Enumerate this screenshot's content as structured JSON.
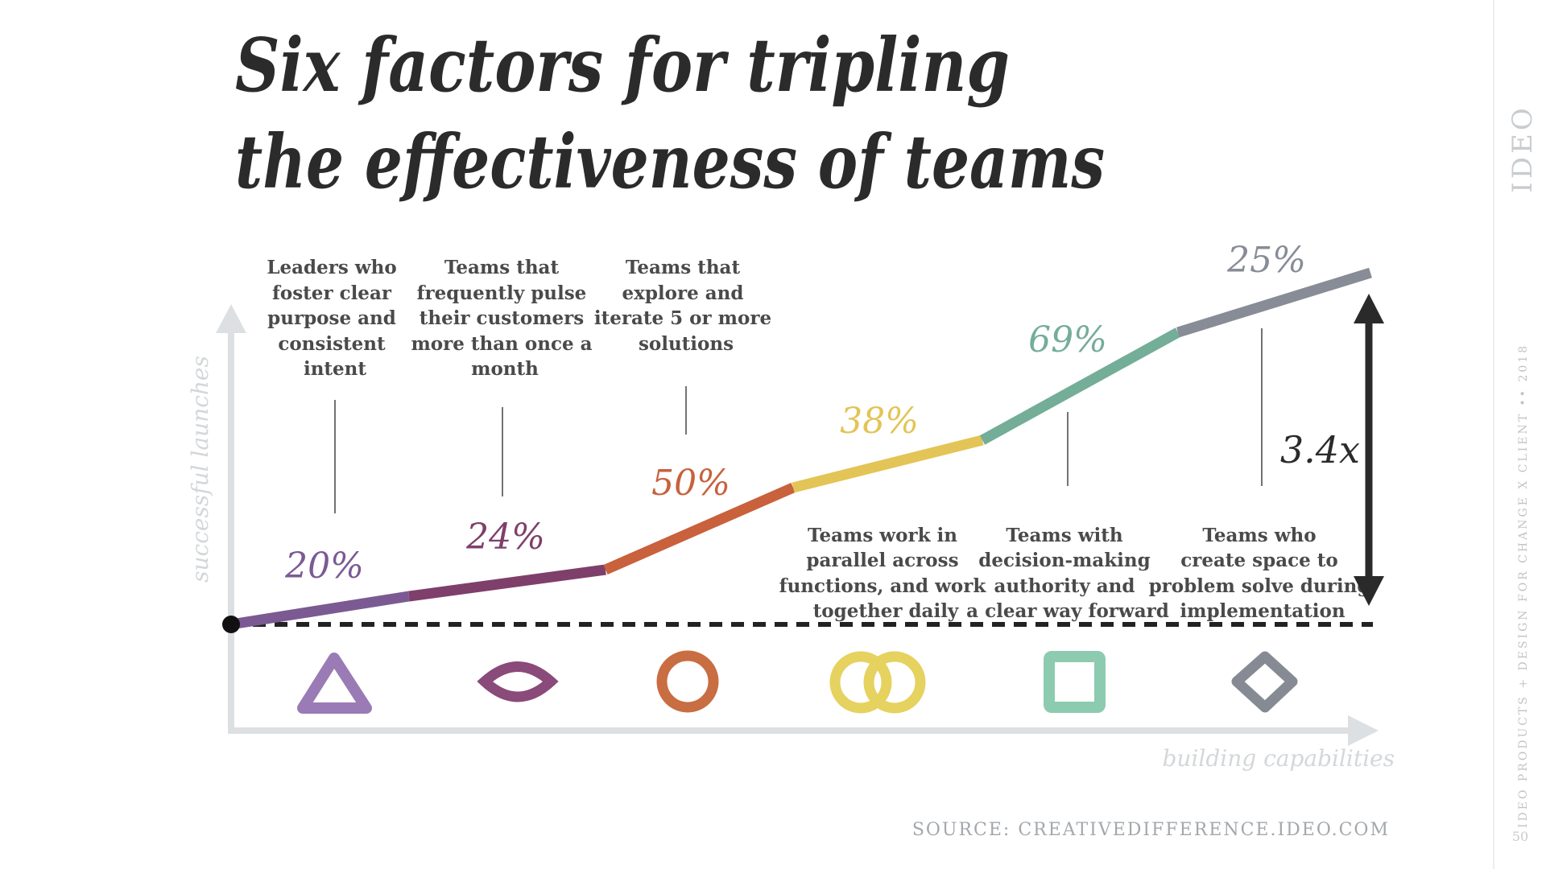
{
  "title": {
    "line1": "Six factors for tripling",
    "line2": "the effectiveness of teams"
  },
  "y_axis_label": "successful launches",
  "x_axis_label": "building capabilities",
  "factors": [
    {
      "percent": "20%",
      "color": "#7b5a93",
      "shape": "triangle-icon",
      "shape_color": "#9a7bb5",
      "description": [
        "Leaders who",
        "foster  clear",
        "purpose and",
        "consistent",
        "intent"
      ]
    },
    {
      "percent": "24%",
      "color": "#7f3f6b",
      "shape": "eye-icon",
      "shape_color": "#8a4a7a",
      "description": [
        "Teams that",
        "frequently pulse",
        "their customers",
        "more than once a",
        "month"
      ]
    },
    {
      "percent": "50%",
      "color": "#c8613c",
      "shape": "circle-icon",
      "shape_color": "#c96d42",
      "description": [
        "Teams that",
        "explore and",
        "iterate 5 or more",
        "solutions"
      ]
    },
    {
      "percent": "38%",
      "color": "#e3c456",
      "shape": "interlocking-rings-icon",
      "shape_color": "#e5d25f",
      "description": [
        "Teams work in",
        "parallel across",
        "functions, and work",
        "together daily"
      ]
    },
    {
      "percent": "69%",
      "color": "#74ad98",
      "shape": "square-icon",
      "shape_color": "#8ccbb0",
      "description": [
        "Teams with",
        "decision-making",
        "authority and",
        "a clear way forward"
      ]
    },
    {
      "percent": "25%",
      "color": "#878c96",
      "shape": "diamond-icon",
      "shape_color": "#858a93",
      "description": [
        "Teams who",
        "create space to",
        "problem solve during",
        "implementation"
      ]
    }
  ],
  "multiplier": "3.4x",
  "source": "SOURCE: CREATIVEDIFFERENCE.IDEO.COM",
  "brand": "IDEO",
  "footer": "IDEO PRODUCTS + DESIGN FOR CHANGE X CLIENT  ••  2018",
  "page_number": "50",
  "colors": {
    "axis": "#dde0e2",
    "baseline": "#222222",
    "arrow": "#2a2a2a",
    "connector": "#444444"
  }
}
